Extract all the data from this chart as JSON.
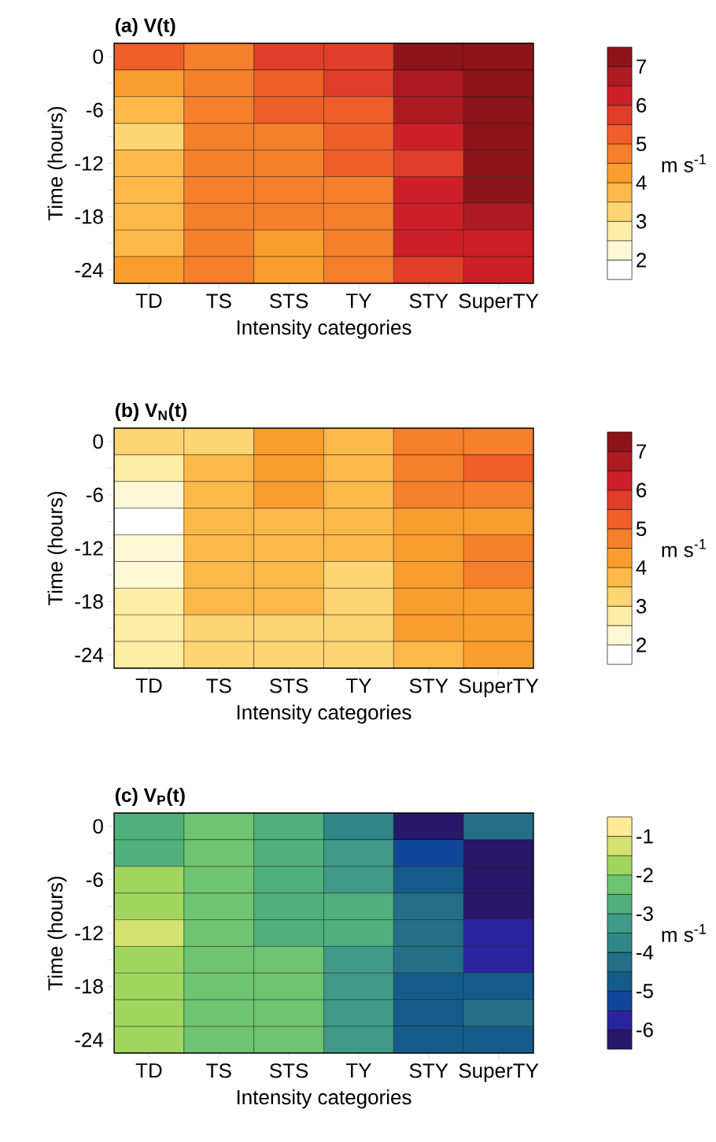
{
  "chart_data": [
    {
      "type": "heatmap",
      "title": "(a) V(t)",
      "xlabel": "Intensity categories",
      "ylabel": "Time (hours)",
      "clabel": "m s$^{-1}$",
      "categories": [
        "TD",
        "TS",
        "STS",
        "TY",
        "STY",
        "SuperTY"
      ],
      "y_categories": [
        "0",
        null,
        "-6",
        null,
        "-12",
        null,
        "-18",
        null,
        "-24"
      ],
      "cells": [
        [
          5.1,
          4.7,
          5.6,
          5.7,
          7.2,
          7.3
        ],
        [
          4.5,
          4.8,
          5.3,
          5.6,
          7.0,
          7.5
        ],
        [
          3.9,
          4.6,
          5.1,
          5.4,
          6.6,
          7.5
        ],
        [
          3.5,
          4.6,
          5.0,
          5.2,
          6.2,
          7.4
        ],
        [
          3.8,
          4.6,
          4.9,
          5.1,
          6.0,
          7.3
        ],
        [
          3.8,
          4.7,
          4.8,
          4.9,
          6.1,
          7.1
        ],
        [
          4.0,
          4.6,
          4.7,
          4.8,
          6.2,
          6.6
        ],
        [
          3.8,
          4.6,
          4.5,
          4.8,
          6.2,
          6.4
        ],
        [
          4.1,
          4.6,
          4.3,
          4.9,
          6.0,
          6.3
        ]
      ],
      "clim": [
        1.5,
        7.5
      ],
      "cticks": [
        2,
        3,
        4,
        5,
        6,
        7
      ],
      "colors": [
        "#ffffff",
        "#fff7d5",
        "#feeda5",
        "#fdd572",
        "#fdb84a",
        "#f99d2f",
        "#f67f2c",
        "#ee5f2a",
        "#e03e28",
        "#cc1f27",
        "#ad1a22",
        "#8d141a"
      ]
    },
    {
      "type": "heatmap",
      "title": "(b) V$_{N}$(t)",
      "xlabel": "Intensity categories",
      "ylabel": "Time (hours)",
      "clabel": "m s$^{-1}$",
      "categories": [
        "TD",
        "TS",
        "STS",
        "TY",
        "STY",
        "SuperTY"
      ],
      "y_categories": [
        "0",
        null,
        "-6",
        null,
        "-12",
        null,
        "-18",
        null,
        "-24"
      ],
      "cells": [
        [
          3.4,
          3.3,
          4.1,
          3.8,
          4.6,
          4.8
        ],
        [
          2.6,
          3.6,
          4.3,
          3.9,
          4.6,
          5.1
        ],
        [
          2.3,
          3.6,
          4.1,
          3.8,
          4.7,
          4.8
        ],
        [
          1.9,
          3.7,
          3.9,
          3.8,
          4.5,
          4.4
        ],
        [
          2.1,
          3.7,
          3.8,
          3.7,
          4.4,
          4.6
        ],
        [
          2.4,
          3.6,
          3.8,
          3.5,
          4.2,
          4.6
        ],
        [
          2.6,
          3.6,
          3.7,
          3.3,
          4.1,
          4.4
        ],
        [
          2.8,
          3.5,
          3.5,
          3.2,
          4.1,
          4.3
        ],
        [
          3.0,
          3.3,
          3.3,
          3.2,
          4.0,
          4.2
        ]
      ],
      "clim": [
        1.5,
        7.5
      ],
      "cticks": [
        2,
        3,
        4,
        5,
        6,
        7
      ],
      "colors": [
        "#ffffff",
        "#fff7d5",
        "#feeda5",
        "#fdd572",
        "#fdb84a",
        "#f99d2f",
        "#f67f2c",
        "#ee5f2a",
        "#e03e28",
        "#cc1f27",
        "#ad1a22",
        "#8d141a"
      ]
    },
    {
      "type": "heatmap",
      "title": "(c) V$_{P}$(t)",
      "xlabel": "Intensity categories",
      "ylabel": "Time (hours)",
      "clabel": "m s$^{-1}$",
      "categories": [
        "TD",
        "TS",
        "STS",
        "TY",
        "STY",
        "SuperTY"
      ],
      "y_categories": [
        "0",
        null,
        "-6",
        null,
        "-12",
        null,
        "-18",
        null,
        "-24"
      ],
      "cells": [
        [
          -2.7,
          -2.3,
          -2.9,
          -3.6,
          -6.2,
          -4.2
        ],
        [
          -2.5,
          -2.2,
          -2.8,
          -3.3,
          -5.2,
          -6.2
        ],
        [
          -1.9,
          -2.1,
          -2.5,
          -3.1,
          -4.6,
          -6.3
        ],
        [
          -1.5,
          -2.0,
          -2.6,
          -2.9,
          -4.4,
          -6.2
        ],
        [
          -1.3,
          -2.0,
          -2.6,
          -2.9,
          -4.3,
          -5.9
        ],
        [
          -1.7,
          -2.2,
          -2.4,
          -3.0,
          -4.4,
          -5.8
        ],
        [
          -1.8,
          -2.3,
          -2.3,
          -3.0,
          -4.6,
          -4.9
        ],
        [
          -1.9,
          -2.3,
          -2.3,
          -3.1,
          -4.5,
          -4.4
        ],
        [
          -1.9,
          -2.3,
          -2.4,
          -3.2,
          -4.8,
          -4.6
        ]
      ],
      "clim": [
        -6.5,
        -0.5
      ],
      "cticks": [
        -6,
        -5,
        -4,
        -3,
        -2,
        -1
      ],
      "colors": [
        "#27186a",
        "#2a239e",
        "#11479a",
        "#135c8a",
        "#236f87",
        "#318688",
        "#3f9b87",
        "#50b07c",
        "#6ec470",
        "#a0d660",
        "#d4e26f",
        "#fdeb97"
      ]
    }
  ]
}
